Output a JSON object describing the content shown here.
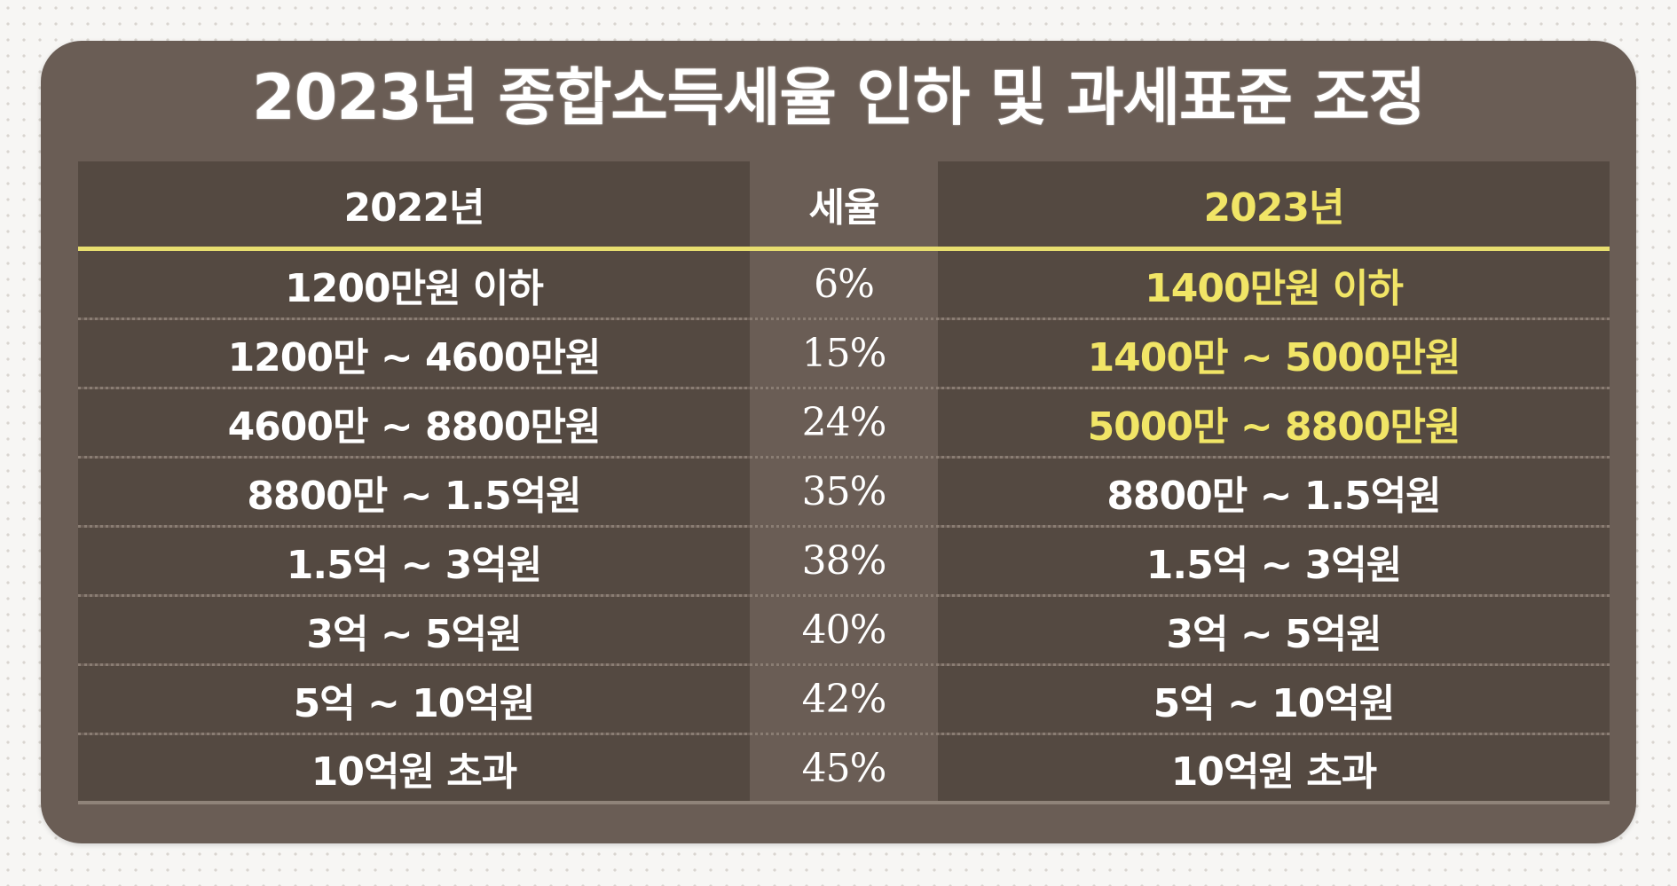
{
  "title": "2023년 종합소득세율 인하 및 과세표준 조정",
  "highlight_color": "#f1e566",
  "table": {
    "headers": {
      "old": "2022년",
      "rate": "세율",
      "new": "2023년"
    },
    "rows": [
      {
        "old": "1200만원 이하",
        "rate": "6%",
        "new": "1400만원 이하",
        "new_changed": true
      },
      {
        "old": "1200만 ~ 4600만원",
        "rate": "15%",
        "new": "1400만 ~ 5000만원",
        "new_changed": true
      },
      {
        "old": "4600만 ~ 8800만원",
        "rate": "24%",
        "new": "5000만 ~ 8800만원",
        "new_changed": true
      },
      {
        "old": "8800만 ~ 1.5억원",
        "rate": "35%",
        "new": "8800만 ~ 1.5억원",
        "new_changed": false
      },
      {
        "old": "1.5억 ~ 3억원",
        "rate": "38%",
        "new": "1.5억 ~ 3억원",
        "new_changed": false
      },
      {
        "old": "3억 ~ 5억원",
        "rate": "40%",
        "new": "3억 ~ 5억원",
        "new_changed": false
      },
      {
        "old": "5억 ~ 10억원",
        "rate": "42%",
        "new": "5억 ~ 10억원",
        "new_changed": false
      },
      {
        "old": "10억원 초과",
        "rate": "45%",
        "new": "10억원 초과",
        "new_changed": false
      }
    ]
  }
}
